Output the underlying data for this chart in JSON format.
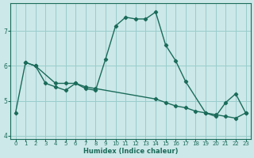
{
  "xlabel": "Humidex (Indice chaleur)",
  "bg_color": "#cce8e8",
  "grid_color": "#99cccc",
  "line_color": "#1a6b5a",
  "xlim": [
    -0.5,
    23.5
  ],
  "ylim": [
    3.9,
    7.8
  ],
  "yticks": [
    4,
    5,
    6,
    7
  ],
  "xticks": [
    0,
    1,
    2,
    3,
    4,
    5,
    6,
    7,
    8,
    9,
    10,
    11,
    12,
    13,
    14,
    15,
    16,
    17,
    18,
    19,
    20,
    21,
    22,
    23
  ],
  "series1_x": [
    0,
    1,
    2,
    4,
    5,
    6,
    7,
    8,
    9,
    10,
    11,
    12,
    13,
    14,
    15,
    16,
    17,
    19,
    20,
    21,
    22,
    23
  ],
  "series1_y": [
    4.65,
    6.1,
    6.0,
    5.5,
    5.5,
    5.5,
    5.35,
    5.3,
    6.2,
    7.15,
    7.4,
    7.35,
    7.35,
    7.55,
    6.6,
    6.15,
    5.55,
    4.65,
    4.55,
    4.95,
    5.2,
    4.65
  ],
  "series2_x": [
    1,
    2,
    3,
    4,
    5,
    6,
    7,
    8,
    14,
    15,
    16,
    17,
    18,
    19,
    20,
    21,
    22,
    23
  ],
  "series2_y": [
    6.1,
    6.0,
    5.5,
    5.4,
    5.3,
    5.5,
    5.4,
    5.35,
    5.05,
    4.95,
    4.85,
    4.8,
    4.7,
    4.65,
    4.6,
    4.55,
    4.5,
    4.65
  ]
}
